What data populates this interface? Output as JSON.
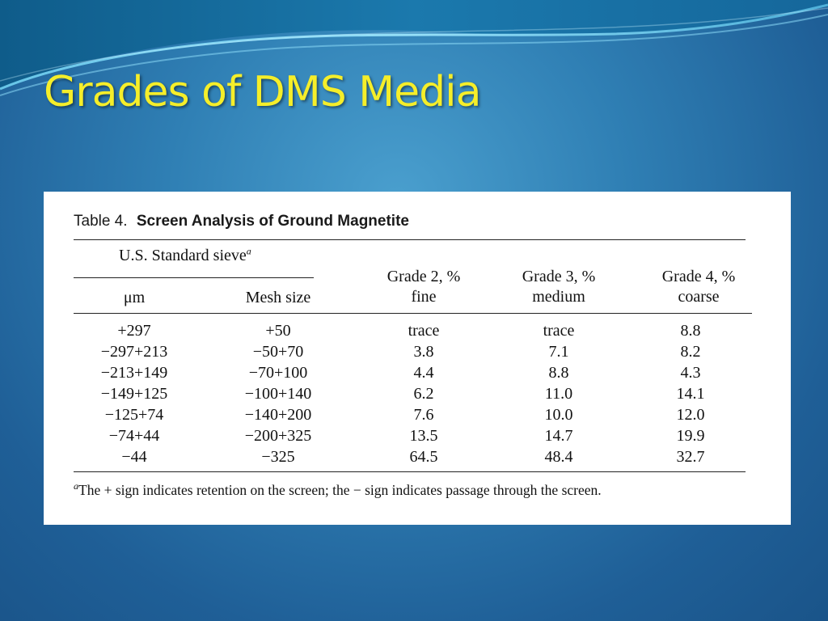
{
  "slide": {
    "title": "Grades of DMS Media"
  },
  "table": {
    "label": "Table 4.",
    "title": "Screen Analysis of Ground Magnetite",
    "group_header": "U.S. Standard sieve",
    "group_header_note": "a",
    "columns": [
      {
        "line1": "μm",
        "line2": ""
      },
      {
        "line1": "Mesh size",
        "line2": ""
      },
      {
        "line1": "Grade 2, %",
        "line2": "fine"
      },
      {
        "line1": "Grade 3, %",
        "line2": "medium"
      },
      {
        "line1": "Grade 4, %",
        "line2": "coarse"
      }
    ],
    "rows": [
      [
        "+297",
        "+50",
        "trace",
        "trace",
        "8.8"
      ],
      [
        "−297+213",
        "−50+70",
        "3.8",
        "7.1",
        "8.2"
      ],
      [
        "−213+149",
        "−70+100",
        "4.4",
        "8.8",
        "4.3"
      ],
      [
        "−149+125",
        "−100+140",
        "6.2",
        "11.0",
        "14.1"
      ],
      [
        "−125+74",
        "−140+200",
        "7.6",
        "10.0",
        "12.0"
      ],
      [
        "−74+44",
        "−200+325",
        "13.5",
        "14.7",
        "19.9"
      ],
      [
        "−44",
        "−325",
        "64.5",
        "48.4",
        "32.7"
      ]
    ],
    "footnote_mark": "a",
    "footnote": "The + sign indicates retention on the screen; the − sign indicates passage through the screen."
  },
  "colors": {
    "title": "#f5ee2a",
    "background": "#2f7fb4",
    "panel": "#ffffff"
  }
}
